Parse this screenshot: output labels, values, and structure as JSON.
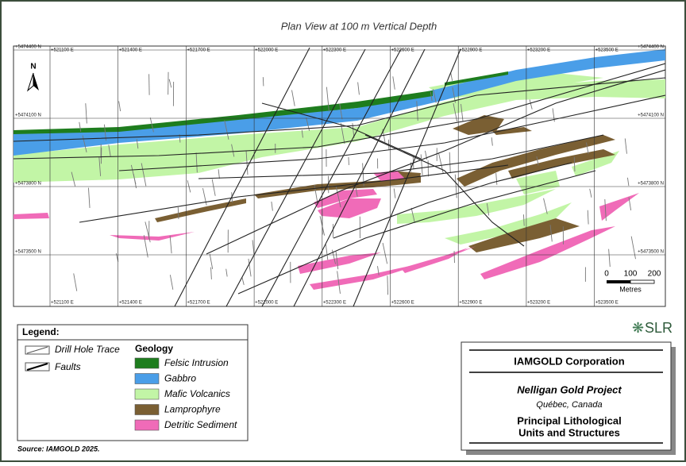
{
  "title": "Plan View at 100 m Vertical Depth",
  "map": {
    "eastings": [
      "+521100 E",
      "+521400 E",
      "+521700 E",
      "+522000 E",
      "+522300 E",
      "+522600 E",
      "+522900 E",
      "+523200 E",
      "+523500 E"
    ],
    "northings": [
      "+5474400 N",
      "+5474100 N",
      "+5473800 N",
      "+5473500 N"
    ],
    "north_label": "N",
    "scale_bar": {
      "ticks": [
        "0",
        "100",
        "200"
      ],
      "unit": "Metres"
    }
  },
  "legend": {
    "title": "Legend:",
    "symbols": [
      "Drill Hole Trace",
      "Faults"
    ],
    "geology_title": "Geology",
    "units": [
      {
        "name": "Felsic Intrusion",
        "color": "#1e7d1e"
      },
      {
        "name": "Gabbro",
        "color": "#4a9ee8"
      },
      {
        "name": "Mafic Volcanics",
        "color": "#c2f5a6"
      },
      {
        "name": "Lamprophyre",
        "color": "#7a5f33"
      },
      {
        "name": "Detritic Sediment",
        "color": "#f06bb8"
      }
    ]
  },
  "source": "Source: IAMGOLD 2025.",
  "logo": "SLR",
  "title_block": {
    "company": "IAMGOLD Corporation",
    "project": "Nelligan Gold Project",
    "location": "Québec, Canada",
    "figure_title": [
      "Principal Lithological",
      "Units and Structures"
    ]
  }
}
